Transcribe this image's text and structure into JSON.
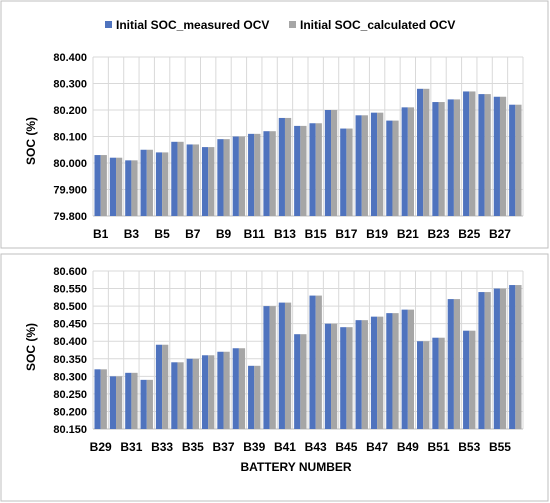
{
  "colors": {
    "measured": "#4f73be",
    "calculated": "#a6a6a6",
    "grid": "#d9d9d9",
    "frame": "#bfbfbf",
    "text": "#000000"
  },
  "legend": {
    "position": "top",
    "items": [
      "Initial SOC_measured OCV",
      "Initial SOC_calculated OCV"
    ]
  },
  "chart_data": [
    {
      "type": "bar",
      "ylabel": "SOC (%)",
      "xlabel": "",
      "ylim": [
        79.8,
        80.4
      ],
      "ytick_step": 0.1,
      "yticks": [
        "80.400",
        "80.300",
        "80.200",
        "80.100",
        "80.000",
        "79.900",
        "79.800"
      ],
      "grid": true,
      "categories": [
        "B1",
        "B2",
        "B3",
        "B4",
        "B5",
        "B6",
        "B7",
        "B8",
        "B9",
        "B10",
        "B11",
        "B12",
        "B13",
        "B14",
        "B15",
        "B16",
        "B17",
        "B18",
        "B19",
        "B20",
        "B21",
        "B22",
        "B23",
        "B24",
        "B25",
        "B26",
        "B27",
        "B28"
      ],
      "xtick_labels": [
        "B1",
        "",
        "B3",
        "",
        "B5",
        "",
        "B7",
        "",
        "B9",
        "",
        "B11",
        "",
        "B13",
        "",
        "B15",
        "",
        "B17",
        "",
        "B19",
        "",
        "B21",
        "",
        "B23",
        "",
        "B25",
        "",
        "B27",
        ""
      ],
      "series": [
        {
          "name": "Initial SOC_measured OCV",
          "values": [
            80.03,
            80.02,
            80.01,
            80.05,
            80.04,
            80.08,
            80.07,
            80.06,
            80.09,
            80.1,
            80.11,
            80.12,
            80.17,
            80.14,
            80.15,
            80.2,
            80.13,
            80.18,
            80.19,
            80.16,
            80.21,
            80.28,
            80.23,
            80.24,
            80.27,
            80.26,
            80.25,
            80.22
          ]
        },
        {
          "name": "Initial SOC_calculated OCV",
          "values": [
            80.03,
            80.02,
            80.01,
            80.05,
            80.04,
            80.08,
            80.07,
            80.06,
            80.09,
            80.1,
            80.11,
            80.12,
            80.17,
            80.14,
            80.15,
            80.2,
            80.13,
            80.18,
            80.19,
            80.16,
            80.21,
            80.28,
            80.23,
            80.24,
            80.27,
            80.26,
            80.25,
            80.22
          ]
        }
      ]
    },
    {
      "type": "bar",
      "ylabel": "SOC (%)",
      "xlabel": "BATTERY NUMBER",
      "ylim": [
        80.15,
        80.6
      ],
      "ytick_step": 0.05,
      "yticks": [
        "80.600",
        "80.550",
        "80.500",
        "80.450",
        "80.400",
        "80.350",
        "80.300",
        "80.250",
        "80.200",
        "80.150"
      ],
      "grid": true,
      "categories": [
        "B29",
        "B30",
        "B31",
        "B32",
        "B33",
        "B34",
        "B35",
        "B36",
        "B37",
        "B38",
        "B39",
        "B40",
        "B41",
        "B42",
        "B43",
        "B44",
        "B45",
        "B46",
        "B47",
        "B48",
        "B49",
        "B50",
        "B51",
        "B52",
        "B53",
        "B54",
        "B55",
        "B56"
      ],
      "xtick_labels": [
        "B29",
        "",
        "B31",
        "",
        "B33",
        "",
        "B35",
        "",
        "B37",
        "",
        "B39",
        "",
        "B41",
        "",
        "B43",
        "",
        "B45",
        "",
        "B47",
        "",
        "B49",
        "",
        "B51",
        "",
        "B53",
        "",
        "B55",
        ""
      ],
      "series": [
        {
          "name": "Initial SOC_measured OCV",
          "values": [
            80.32,
            80.3,
            80.31,
            80.29,
            80.39,
            80.34,
            80.35,
            80.36,
            80.37,
            80.38,
            80.33,
            80.5,
            80.51,
            80.42,
            80.53,
            80.45,
            80.44,
            80.46,
            80.47,
            80.48,
            80.49,
            80.4,
            80.41,
            80.52,
            80.43,
            80.54,
            80.55,
            80.56
          ]
        },
        {
          "name": "Initial SOC_calculated OCV",
          "values": [
            80.32,
            80.3,
            80.31,
            80.29,
            80.39,
            80.34,
            80.35,
            80.36,
            80.37,
            80.38,
            80.33,
            80.5,
            80.51,
            80.42,
            80.53,
            80.45,
            80.44,
            80.46,
            80.47,
            80.48,
            80.49,
            80.4,
            80.41,
            80.52,
            80.43,
            80.54,
            80.55,
            80.56
          ]
        }
      ]
    }
  ]
}
